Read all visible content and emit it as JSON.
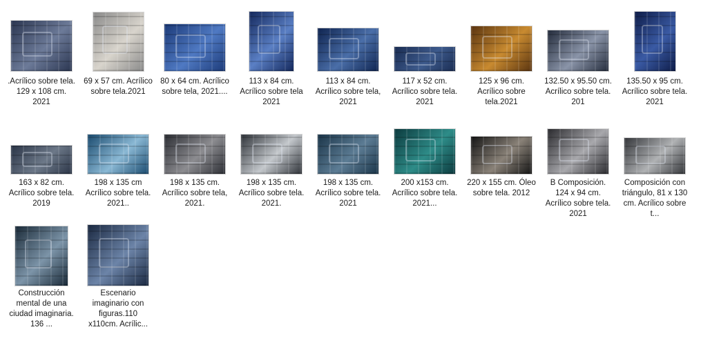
{
  "files": [
    {
      "caption": ".Acrílico sobre tela. 129 x 108 cm. 2021",
      "colors": [
        "#2a3550",
        "#6c7a98"
      ],
      "icon": "painting-thumbnail-icon"
    },
    {
      "caption": "69 x 57 cm. Acrílico sobre tela.2021",
      "colors": [
        "#8a8a8a",
        "#d8d4cc"
      ],
      "icon": "painting-thumbnail-icon"
    },
    {
      "caption": "80 x 64 cm. Acrílico sobre tela, 2021....",
      "colors": [
        "#1c3a78",
        "#4f79c2"
      ],
      "icon": "painting-thumbnail-icon"
    },
    {
      "caption": "113 x 84 cm. Acrílico sobre tela 2021",
      "colors": [
        "#14285c",
        "#5a7fc4"
      ],
      "icon": "painting-thumbnail-icon"
    },
    {
      "caption": "113 x 84 cm. Acrílico sobre tela, 2021",
      "colors": [
        "#0f2450",
        "#4a6ea8"
      ],
      "icon": "painting-thumbnail-icon"
    },
    {
      "caption": "117 x 52 cm. Acrílico sobre tela. 2021",
      "colors": [
        "#1a2c52",
        "#3d5a8c"
      ],
      "icon": "painting-thumbnail-icon"
    },
    {
      "caption": "125 x 96 cm. Acrílico sobre tela.2021",
      "colors": [
        "#5a3410",
        "#c88a30"
      ],
      "icon": "painting-thumbnail-icon"
    },
    {
      "caption": "132.50 x 95.50 cm. Acrílico sobre tela. 201",
      "colors": [
        "#242c3c",
        "#8a94a8"
      ],
      "icon": "painting-thumbnail-icon"
    },
    {
      "caption": "135.50 x 95 cm. Acrílico sobre tela. 2021",
      "colors": [
        "#0e1c48",
        "#3a5aa4"
      ],
      "icon": "painting-thumbnail-icon"
    },
    {
      "caption": "163 x 82 cm. Acrílico sobre tela. 2019",
      "colors": [
        "#2a3446",
        "#6c7888"
      ],
      "icon": "painting-thumbnail-icon"
    },
    {
      "caption": "198 x 135 cm Acrílico sobre tela. 2021..",
      "colors": [
        "#1a4a6e",
        "#8ab8d4"
      ],
      "icon": "painting-thumbnail-icon"
    },
    {
      "caption": "198 x 135 cm. Acrílico sobre tela, 2021.",
      "colors": [
        "#2c2e34",
        "#8c8c90"
      ],
      "icon": "painting-thumbnail-icon"
    },
    {
      "caption": "198 x 135 cm. Acrílico sobre tela. 2021.",
      "colors": [
        "#2e3238",
        "#c4c8cc"
      ],
      "icon": "painting-thumbnail-icon"
    },
    {
      "caption": "198 x 135 cm. Acrílico sobre tela. 2021",
      "colors": [
        "#1a3448",
        "#5c7c94"
      ],
      "icon": "painting-thumbnail-icon"
    },
    {
      "caption": "200 x153 cm. Acrílico sobre tela. 2021...",
      "colors": [
        "#0c3a3e",
        "#2e8c88"
      ],
      "icon": "painting-thumbnail-icon"
    },
    {
      "caption": "220 x 155 cm. Óleo sobre tela. 2012",
      "colors": [
        "#141414",
        "#8a8278"
      ],
      "icon": "painting-thumbnail-icon"
    },
    {
      "caption": "B  Composición. 124 x 94 cm. Acrílico sobre tela. 2021",
      "colors": [
        "#2a2a2e",
        "#a8a8ac"
      ],
      "icon": "painting-thumbnail-icon"
    },
    {
      "caption": "Composición con triángulo, 81 x 130 cm. Acrílico sobre t...",
      "colors": [
        "#34363a",
        "#b0b2b4"
      ],
      "icon": "painting-thumbnail-icon"
    },
    {
      "caption": "Construcción mental de una ciudad imaginaria. 136 ...",
      "colors": [
        "#1a2a38",
        "#7c94a8"
      ],
      "icon": "painting-thumbnail-icon"
    },
    {
      "caption": "Escenario imaginario con figuras.110 x110cm. Acrílic...",
      "colors": [
        "#1a2840",
        "#6c84a8"
      ],
      "icon": "painting-thumbnail-icon"
    }
  ]
}
